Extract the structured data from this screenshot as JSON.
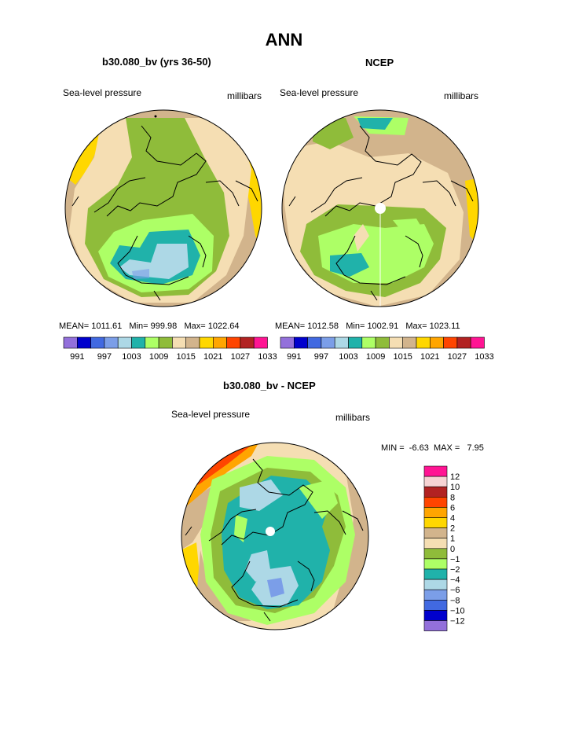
{
  "page": {
    "main_title": "ANN"
  },
  "panels": [
    {
      "title": "b30.080_bv (yrs 36-50)",
      "variable": "Sea-level pressure",
      "units": "millibars",
      "stats": {
        "mean_label": "MEAN=",
        "mean": "1011.61",
        "min_label": "Min=",
        "min": "999.98",
        "max_label": "Max=",
        "max": "1022.64"
      }
    },
    {
      "title": "NCEP",
      "variable": "Sea-level pressure",
      "units": "millibars",
      "stats": {
        "mean_label": "MEAN=",
        "mean": "1012.58",
        "min_label": "Min=",
        "min": "1002.91",
        "max_label": "Max=",
        "max": "1023.11"
      }
    }
  ],
  "diff_panel": {
    "title": "b30.080_bv - NCEP",
    "variable": "Sea-level pressure",
    "units": "millibars",
    "min_label": "MIN =",
    "min": "-6.63",
    "max_label": "MAX =",
    "max": "7.95"
  },
  "chart_data": [
    {
      "type": "heatmap",
      "projection": "north polar stereographic",
      "title": "b30.080_bv (yrs 36-50)",
      "colorbar_orientation": "horizontal",
      "colorbar_ticks": [
        "991",
        "997",
        "1003",
        "1009",
        "1015",
        "1021",
        "1027",
        "1033"
      ],
      "colorbar_colors": [
        "#9370DB",
        "#0000CD",
        "#4169E1",
        "#7B9EE8",
        "#ADD8E6",
        "#20B2AA",
        "#ADFF66",
        "#8FBC3A",
        "#F5DEB3",
        "#D2B48C",
        "#FFD700",
        "#FFA500",
        "#FF4500",
        "#B22222",
        "#FF1493"
      ]
    },
    {
      "type": "heatmap",
      "projection": "north polar stereographic",
      "title": "NCEP",
      "colorbar_orientation": "horizontal",
      "colorbar_ticks": [
        "991",
        "997",
        "1003",
        "1009",
        "1015",
        "1021",
        "1027",
        "1033"
      ],
      "colorbar_colors": [
        "#9370DB",
        "#0000CD",
        "#4169E1",
        "#7B9EE8",
        "#ADD8E6",
        "#20B2AA",
        "#ADFF66",
        "#8FBC3A",
        "#F5DEB3",
        "#D2B48C",
        "#FFD700",
        "#FFA500",
        "#FF4500",
        "#B22222",
        "#FF1493"
      ]
    },
    {
      "type": "heatmap",
      "projection": "north polar stereographic",
      "title": "b30.080_bv - NCEP",
      "colorbar_orientation": "vertical",
      "colorbar_labels": [
        "12",
        "10",
        "8",
        "6",
        "4",
        "2",
        "1",
        "0",
        "−1",
        "−2",
        "−4",
        "−6",
        "−8",
        "−10",
        "−12"
      ],
      "colorbar_colors": [
        "#FF1493",
        "#F6D3D3",
        "#B22222",
        "#FF4500",
        "#FFA500",
        "#FFD700",
        "#D2B48C",
        "#F5DEB3",
        "#8FBC3A",
        "#ADFF66",
        "#20B2AA",
        "#ADD8E6",
        "#7B9EE8",
        "#4169E1",
        "#0000CD",
        "#9370DB"
      ]
    }
  ]
}
